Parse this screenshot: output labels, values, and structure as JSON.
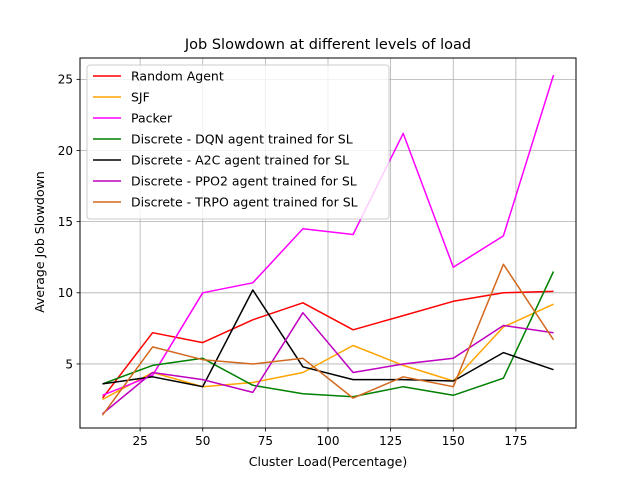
{
  "chart_data": {
    "type": "line",
    "title": "Job Slowdown at different levels of load",
    "xlabel": "Cluster Load(Percentage)",
    "ylabel": "Average Job Slowdown",
    "x": [
      10,
      30,
      50,
      70,
      90,
      110,
      130,
      150,
      170,
      190
    ],
    "xlim": [
      1,
      199
    ],
    "ylim": [
      0.5,
      26.5
    ],
    "xticks": [
      25,
      50,
      75,
      100,
      125,
      150,
      175
    ],
    "yticks": [
      5,
      10,
      15,
      20,
      25
    ],
    "grid": true,
    "legend_position": "top-left",
    "series": [
      {
        "name": "Random Agent",
        "color": "#ff0000",
        "values": [
          2.6,
          7.2,
          6.5,
          8.1,
          9.3,
          7.4,
          8.4,
          9.4,
          10.0,
          10.1
        ]
      },
      {
        "name": "SJF",
        "color": "#ffa500",
        "values": [
          2.5,
          4.4,
          3.4,
          3.7,
          4.4,
          6.3,
          4.9,
          3.8,
          7.6,
          9.2
        ]
      },
      {
        "name": "Packer",
        "color": "#ff00ff",
        "values": [
          2.8,
          4.2,
          10.0,
          10.7,
          14.5,
          14.1,
          21.2,
          11.8,
          14.0,
          25.3
        ]
      },
      {
        "name": "Discrete - DQN agent trained for SL",
        "color": "#008000",
        "values": [
          3.6,
          4.9,
          5.4,
          3.5,
          2.9,
          2.7,
          3.4,
          2.8,
          4.0,
          11.5
        ]
      },
      {
        "name": "Discrete - A2C agent trained for SL",
        "color": "#000000",
        "values": [
          3.6,
          4.1,
          3.4,
          10.2,
          4.8,
          3.9,
          3.9,
          3.8,
          5.8,
          4.6
        ]
      },
      {
        "name": "Discrete - PPO2 agent trained for SL",
        "color": "#bf00bf",
        "values": [
          1.5,
          4.4,
          3.9,
          3.0,
          8.6,
          4.4,
          5.0,
          5.4,
          7.7,
          7.2
        ]
      },
      {
        "name": "Discrete - TRPO agent trained for SL",
        "color": "#d2691e",
        "values": [
          1.4,
          6.2,
          5.3,
          5.0,
          5.4,
          2.6,
          4.1,
          3.4,
          12.0,
          6.7
        ]
      }
    ]
  }
}
